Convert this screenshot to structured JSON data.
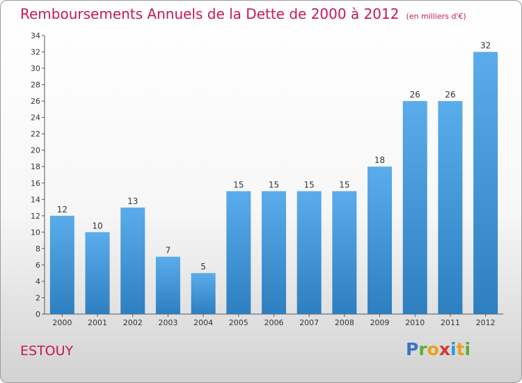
{
  "title": "Remboursements Annuels de la Dette de 2000 à 2012",
  "unit": "(en milliers d'€)",
  "commune": "ESTOUY",
  "logo": {
    "p": "P",
    "r": "r",
    "o": "o",
    "x": "x",
    "i": "i",
    "t": "t",
    "i2": "i"
  },
  "colors": {
    "bar_top": "#5aacea",
    "bar_bottom": "#2d7fc0",
    "title": "#c2185b"
  },
  "chart_data": {
    "type": "bar",
    "categories": [
      "2000",
      "2001",
      "2002",
      "2003",
      "2004",
      "2005",
      "2006",
      "2007",
      "2008",
      "2009",
      "2010",
      "2011",
      "2012"
    ],
    "values": [
      12,
      10,
      13,
      7,
      5,
      15,
      15,
      15,
      15,
      18,
      26,
      26,
      32
    ],
    "ylim": [
      0,
      34
    ],
    "yticks": [
      0,
      2,
      4,
      6,
      8,
      10,
      12,
      14,
      16,
      18,
      20,
      22,
      24,
      26,
      28,
      30,
      32,
      34
    ],
    "grid": false,
    "legend": "none"
  }
}
